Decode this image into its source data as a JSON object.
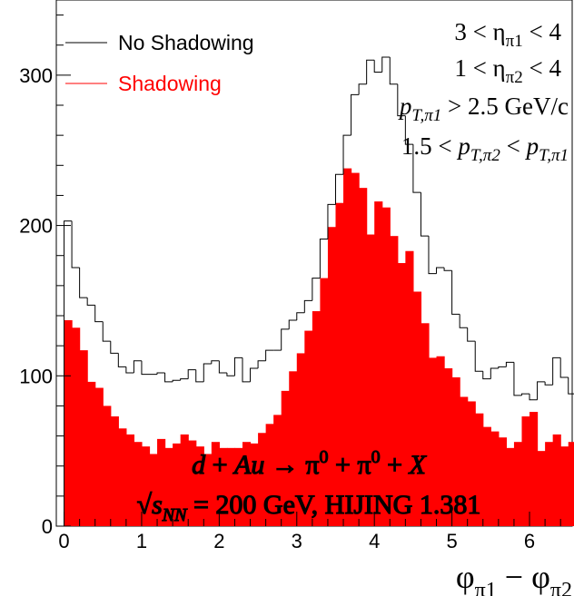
{
  "chart_data": {
    "type": "histogram",
    "xlabel": "φπ1 − φπ2",
    "ylabel": "",
    "xlim": [
      -0.1,
      6.55
    ],
    "ylim": [
      0,
      350
    ],
    "x_ticks": [
      "0",
      "1",
      "2",
      "3",
      "4",
      "5",
      "6"
    ],
    "y_ticks": [
      "0",
      "100",
      "200",
      "300"
    ],
    "grid": false,
    "legend_placement": "top-left",
    "bin_start": 0,
    "bin_width": 0.1,
    "series": [
      {
        "name": "No Shadowing",
        "style": "outline",
        "color": "#000000",
        "values": [
          203,
          172,
          152,
          147,
          136,
          123,
          115,
          106,
          102,
          110,
          101,
          101,
          102,
          96,
          97,
          98,
          104,
          96,
          108,
          110,
          102,
          100,
          112,
          96,
          105,
          110,
          117,
          117,
          131,
          137,
          142,
          150,
          165,
          191,
          214,
          234,
          260,
          287,
          294,
          310,
          302,
          312,
          294,
          273,
          254,
          222,
          193,
          168,
          172,
          170,
          141,
          132,
          123,
          103,
          98,
          105,
          106,
          109,
          87,
          88,
          84,
          96,
          94,
          112,
          99,
          88,
          114,
          101,
          121,
          137,
          132,
          155,
          163,
          178,
          178,
          174,
          147
        ]
      },
      {
        "name": "Shadowing",
        "style": "filled",
        "color": "#ff0000",
        "values": [
          137,
          132,
          117,
          96,
          92,
          80,
          73,
          65,
          61,
          56,
          53,
          48,
          58,
          52,
          55,
          61,
          57,
          53,
          48,
          56,
          52,
          52,
          52,
          56,
          55,
          62,
          68,
          74,
          90,
          103,
          115,
          130,
          143,
          165,
          199,
          215,
          238,
          235,
          225,
          194,
          216,
          212,
          193,
          175,
          183,
          156,
          135,
          112,
          113,
          105,
          99,
          86,
          83,
          75,
          66,
          63,
          59,
          52,
          56,
          73,
          76,
          50,
          56,
          61,
          53,
          56,
          70,
          71,
          57,
          45,
          68,
          89,
          98,
          107,
          128,
          114,
          115
        ]
      }
    ]
  },
  "annotations": {
    "eta1_cut": "3 < ηπ1 < 4",
    "eta2_cut": "1 < ηπ2 < 4",
    "pt1_cut": "pT,π1 > 2.5 GeV/c",
    "pt2_cut": "1.5 < pT,π2 < pT,π1",
    "reaction": "d + Au → π0 + π0 + X",
    "energy": "√sNN = 200 GeV,  HIJING 1.381"
  }
}
